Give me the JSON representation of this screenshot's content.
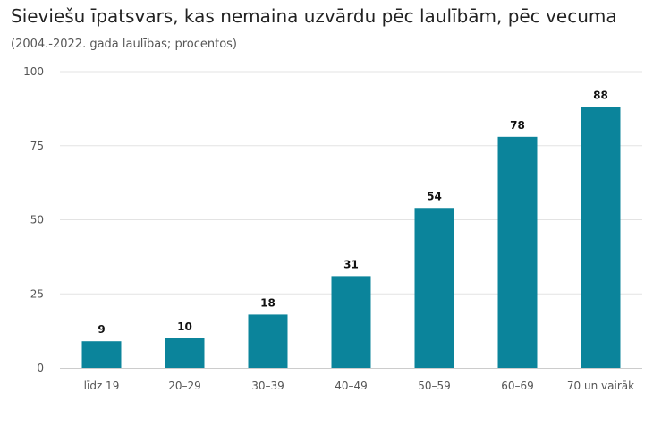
{
  "header": {
    "title": "Sieviešu īpatsvars, kas nemaina uzvārdu pēc laulībām, pēc vecuma",
    "subtitle": "(2004.-2022. gada laulības; procentos)"
  },
  "colors": {
    "bar": "#0b849b",
    "grid": "#e3e3e3",
    "axis": "#cccccc"
  },
  "chart_data": {
    "type": "bar",
    "title": "Sieviešu īpatsvars, kas nemaina uzvārdu pēc laulībām, pēc vecuma",
    "subtitle": "(2004.-2022. gada laulības; procentos)",
    "categories": [
      "līdz 19",
      "20–29",
      "30–39",
      "40–49",
      "50–59",
      "60–69",
      "70 un vairāk"
    ],
    "values": [
      9,
      10,
      18,
      31,
      54,
      78,
      88
    ],
    "ylim": [
      0,
      100
    ],
    "yticks": [
      0,
      25,
      50,
      75,
      100
    ],
    "grid": true,
    "legend": "none",
    "data_labels": true
  }
}
